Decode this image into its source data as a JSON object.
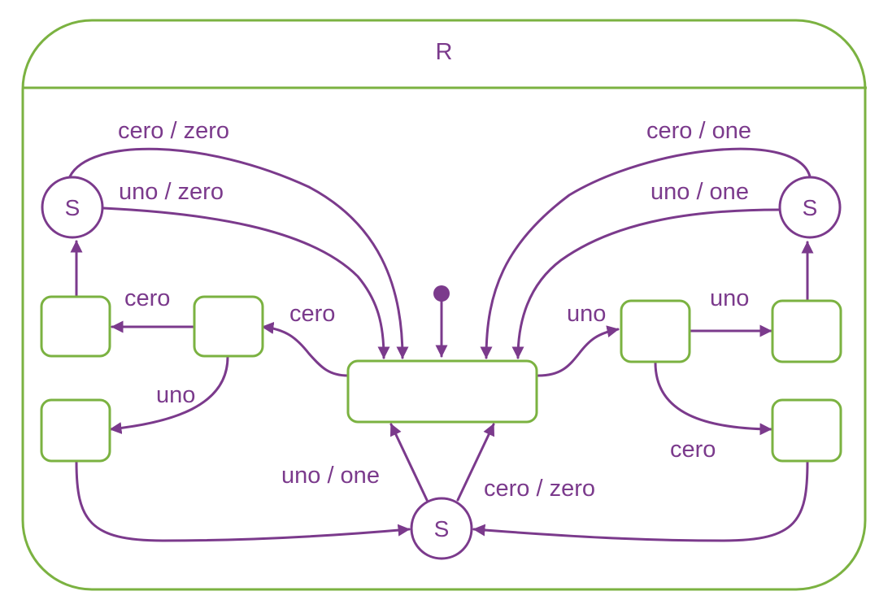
{
  "colors": {
    "state": "#7bb241",
    "transition": "#7b3a8c",
    "text": "#7b3a8c",
    "background": "#ffffff"
  },
  "region": {
    "title": "R"
  },
  "states": {
    "sync_label": "S"
  },
  "transitions": {
    "top_left_cero_zero": "cero / zero",
    "top_left_uno_zero": "uno / zero",
    "top_right_cero_one": "cero / one",
    "top_right_uno_one": "uno / one",
    "left_cero_to_center_left": "cero",
    "left_cero_inner": "cero",
    "left_uno": "uno",
    "right_uno_from_center": "uno",
    "right_uno_inner": "uno",
    "right_cero": "cero",
    "bottom_uno_one": "uno / one",
    "bottom_cero_zero": "cero / zero"
  }
}
